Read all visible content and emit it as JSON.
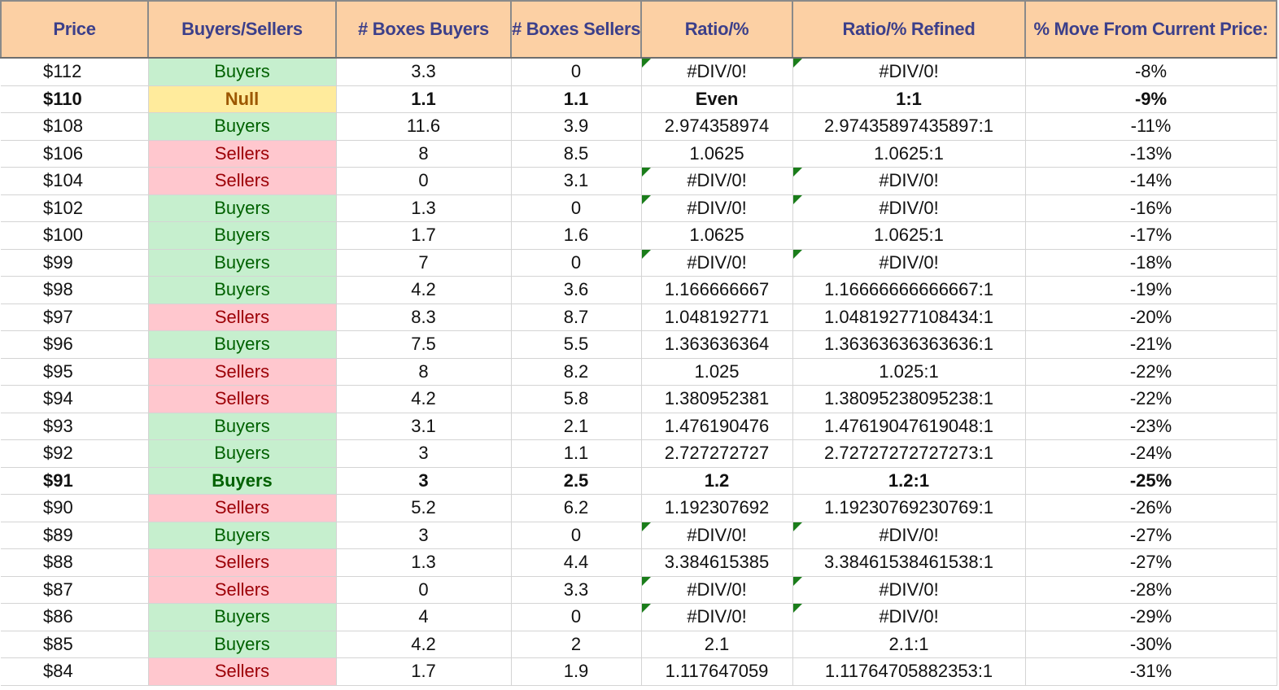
{
  "colors": {
    "header_bg": "#fcd0a4",
    "header_text": "#3c3f8a",
    "buyers_bg": "#c6efce",
    "buyers_text": "#006100",
    "sellers_bg": "#ffc7ce",
    "sellers_text": "#9c0006",
    "null_bg": "#ffeb9c",
    "null_text": "#9c5700",
    "error_flag": "#1a7d1a"
  },
  "headers": [
    "Price",
    "Buyers/Sellers",
    "# Boxes Buyers",
    "# Boxes Sellers",
    "Ratio/%",
    "Ratio/% Refined",
    "% Move From Current Price:"
  ],
  "rows": [
    {
      "price": "$112",
      "side": "Buyers",
      "buyers": "3.3",
      "sellers": "0",
      "ratio": "#DIV/0!",
      "refined": "#DIV/0!",
      "move": "-8%",
      "bold": false,
      "error": true
    },
    {
      "price": "$110",
      "side": "Null",
      "buyers": "1.1",
      "sellers": "1.1",
      "ratio": "Even",
      "refined": "1:1",
      "move": "-9%",
      "bold": true,
      "error": false
    },
    {
      "price": "$108",
      "side": "Buyers",
      "buyers": "11.6",
      "sellers": "3.9",
      "ratio": "2.974358974",
      "refined": "2.97435897435897:1",
      "move": "-11%",
      "bold": false,
      "error": false
    },
    {
      "price": "$106",
      "side": "Sellers",
      "buyers": "8",
      "sellers": "8.5",
      "ratio": "1.0625",
      "refined": "1.0625:1",
      "move": "-13%",
      "bold": false,
      "error": false
    },
    {
      "price": "$104",
      "side": "Sellers",
      "buyers": "0",
      "sellers": "3.1",
      "ratio": "#DIV/0!",
      "refined": "#DIV/0!",
      "move": "-14%",
      "bold": false,
      "error": true
    },
    {
      "price": "$102",
      "side": "Buyers",
      "buyers": "1.3",
      "sellers": "0",
      "ratio": "#DIV/0!",
      "refined": "#DIV/0!",
      "move": "-16%",
      "bold": false,
      "error": true
    },
    {
      "price": "$100",
      "side": "Buyers",
      "buyers": "1.7",
      "sellers": "1.6",
      "ratio": "1.0625",
      "refined": "1.0625:1",
      "move": "-17%",
      "bold": false,
      "error": false
    },
    {
      "price": "$99",
      "side": "Buyers",
      "buyers": "7",
      "sellers": "0",
      "ratio": "#DIV/0!",
      "refined": "#DIV/0!",
      "move": "-18%",
      "bold": false,
      "error": true
    },
    {
      "price": "$98",
      "side": "Buyers",
      "buyers": "4.2",
      "sellers": "3.6",
      "ratio": "1.166666667",
      "refined": "1.16666666666667:1",
      "move": "-19%",
      "bold": false,
      "error": false
    },
    {
      "price": "$97",
      "side": "Sellers",
      "buyers": "8.3",
      "sellers": "8.7",
      "ratio": "1.048192771",
      "refined": "1.04819277108434:1",
      "move": "-20%",
      "bold": false,
      "error": false
    },
    {
      "price": "$96",
      "side": "Buyers",
      "buyers": "7.5",
      "sellers": "5.5",
      "ratio": "1.363636364",
      "refined": "1.36363636363636:1",
      "move": "-21%",
      "bold": false,
      "error": false
    },
    {
      "price": "$95",
      "side": "Sellers",
      "buyers": "8",
      "sellers": "8.2",
      "ratio": "1.025",
      "refined": "1.025:1",
      "move": "-22%",
      "bold": false,
      "error": false
    },
    {
      "price": "$94",
      "side": "Sellers",
      "buyers": "4.2",
      "sellers": "5.8",
      "ratio": "1.380952381",
      "refined": "1.38095238095238:1",
      "move": "-22%",
      "bold": false,
      "error": false
    },
    {
      "price": "$93",
      "side": "Buyers",
      "buyers": "3.1",
      "sellers": "2.1",
      "ratio": "1.476190476",
      "refined": "1.47619047619048:1",
      "move": "-23%",
      "bold": false,
      "error": false
    },
    {
      "price": "$92",
      "side": "Buyers",
      "buyers": "3",
      "sellers": "1.1",
      "ratio": "2.727272727",
      "refined": "2.72727272727273:1",
      "move": "-24%",
      "bold": false,
      "error": false
    },
    {
      "price": "$91",
      "side": "Buyers",
      "buyers": "3",
      "sellers": "2.5",
      "ratio": "1.2",
      "refined": "1.2:1",
      "move": "-25%",
      "bold": true,
      "error": false
    },
    {
      "price": "$90",
      "side": "Sellers",
      "buyers": "5.2",
      "sellers": "6.2",
      "ratio": "1.192307692",
      "refined": "1.19230769230769:1",
      "move": "-26%",
      "bold": false,
      "error": false
    },
    {
      "price": "$89",
      "side": "Buyers",
      "buyers": "3",
      "sellers": "0",
      "ratio": "#DIV/0!",
      "refined": "#DIV/0!",
      "move": "-27%",
      "bold": false,
      "error": true
    },
    {
      "price": "$88",
      "side": "Sellers",
      "buyers": "1.3",
      "sellers": "4.4",
      "ratio": "3.384615385",
      "refined": "3.38461538461538:1",
      "move": "-27%",
      "bold": false,
      "error": false
    },
    {
      "price": "$87",
      "side": "Sellers",
      "buyers": "0",
      "sellers": "3.3",
      "ratio": "#DIV/0!",
      "refined": "#DIV/0!",
      "move": "-28%",
      "bold": false,
      "error": true
    },
    {
      "price": "$86",
      "side": "Buyers",
      "buyers": "4",
      "sellers": "0",
      "ratio": "#DIV/0!",
      "refined": "#DIV/0!",
      "move": "-29%",
      "bold": false,
      "error": true
    },
    {
      "price": "$85",
      "side": "Buyers",
      "buyers": "4.2",
      "sellers": "2",
      "ratio": "2.1",
      "refined": "2.1:1",
      "move": "-30%",
      "bold": false,
      "error": false
    },
    {
      "price": "$84",
      "side": "Sellers",
      "buyers": "1.7",
      "sellers": "1.9",
      "ratio": "1.117647059",
      "refined": "1.11764705882353:1",
      "move": "-31%",
      "bold": false,
      "error": false
    }
  ]
}
